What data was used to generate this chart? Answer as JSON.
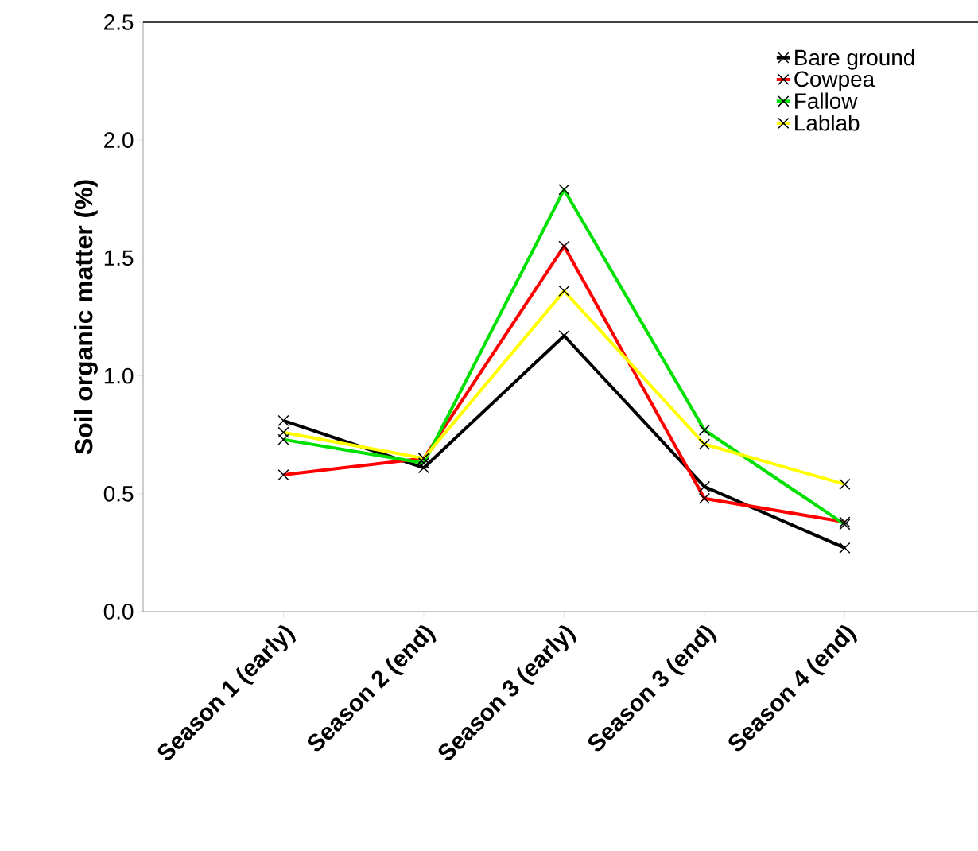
{
  "chart_data": {
    "type": "line",
    "ylabel": "Soil organic matter (%)",
    "categories": [
      "Season 1 (early)",
      "Season 2 (end)",
      "Season 3 (early)",
      "Season 3 (end)",
      "Season 4 (end)"
    ],
    "ylim": [
      0,
      2.5
    ],
    "yticks": [
      {
        "value": 0,
        "label": "0.0"
      },
      {
        "value": 0.5,
        "label": "0.5"
      },
      {
        "value": 1,
        "label": "1.0"
      },
      {
        "value": 1.5,
        "label": "1.5"
      },
      {
        "value": 2,
        "label": "2.0"
      },
      {
        "value": 2.5,
        "label": "2.5"
      }
    ],
    "marker": "cross",
    "legend": "top right",
    "grid": false,
    "series": [
      {
        "name": "Bare ground",
        "color": "#000000",
        "values": [
          0.81,
          0.61,
          1.17,
          0.53,
          0.27
        ]
      },
      {
        "name": "Cowpea",
        "color": "#ff0000",
        "values": [
          0.58,
          0.65,
          1.55,
          0.48,
          0.38
        ]
      },
      {
        "name": "Fallow",
        "color": "#00e000",
        "values": [
          0.73,
          0.63,
          1.79,
          0.77,
          0.37
        ]
      },
      {
        "name": "Lablab",
        "color": "#ffff00",
        "values": [
          0.76,
          0.65,
          1.36,
          0.71,
          0.54
        ]
      }
    ]
  }
}
